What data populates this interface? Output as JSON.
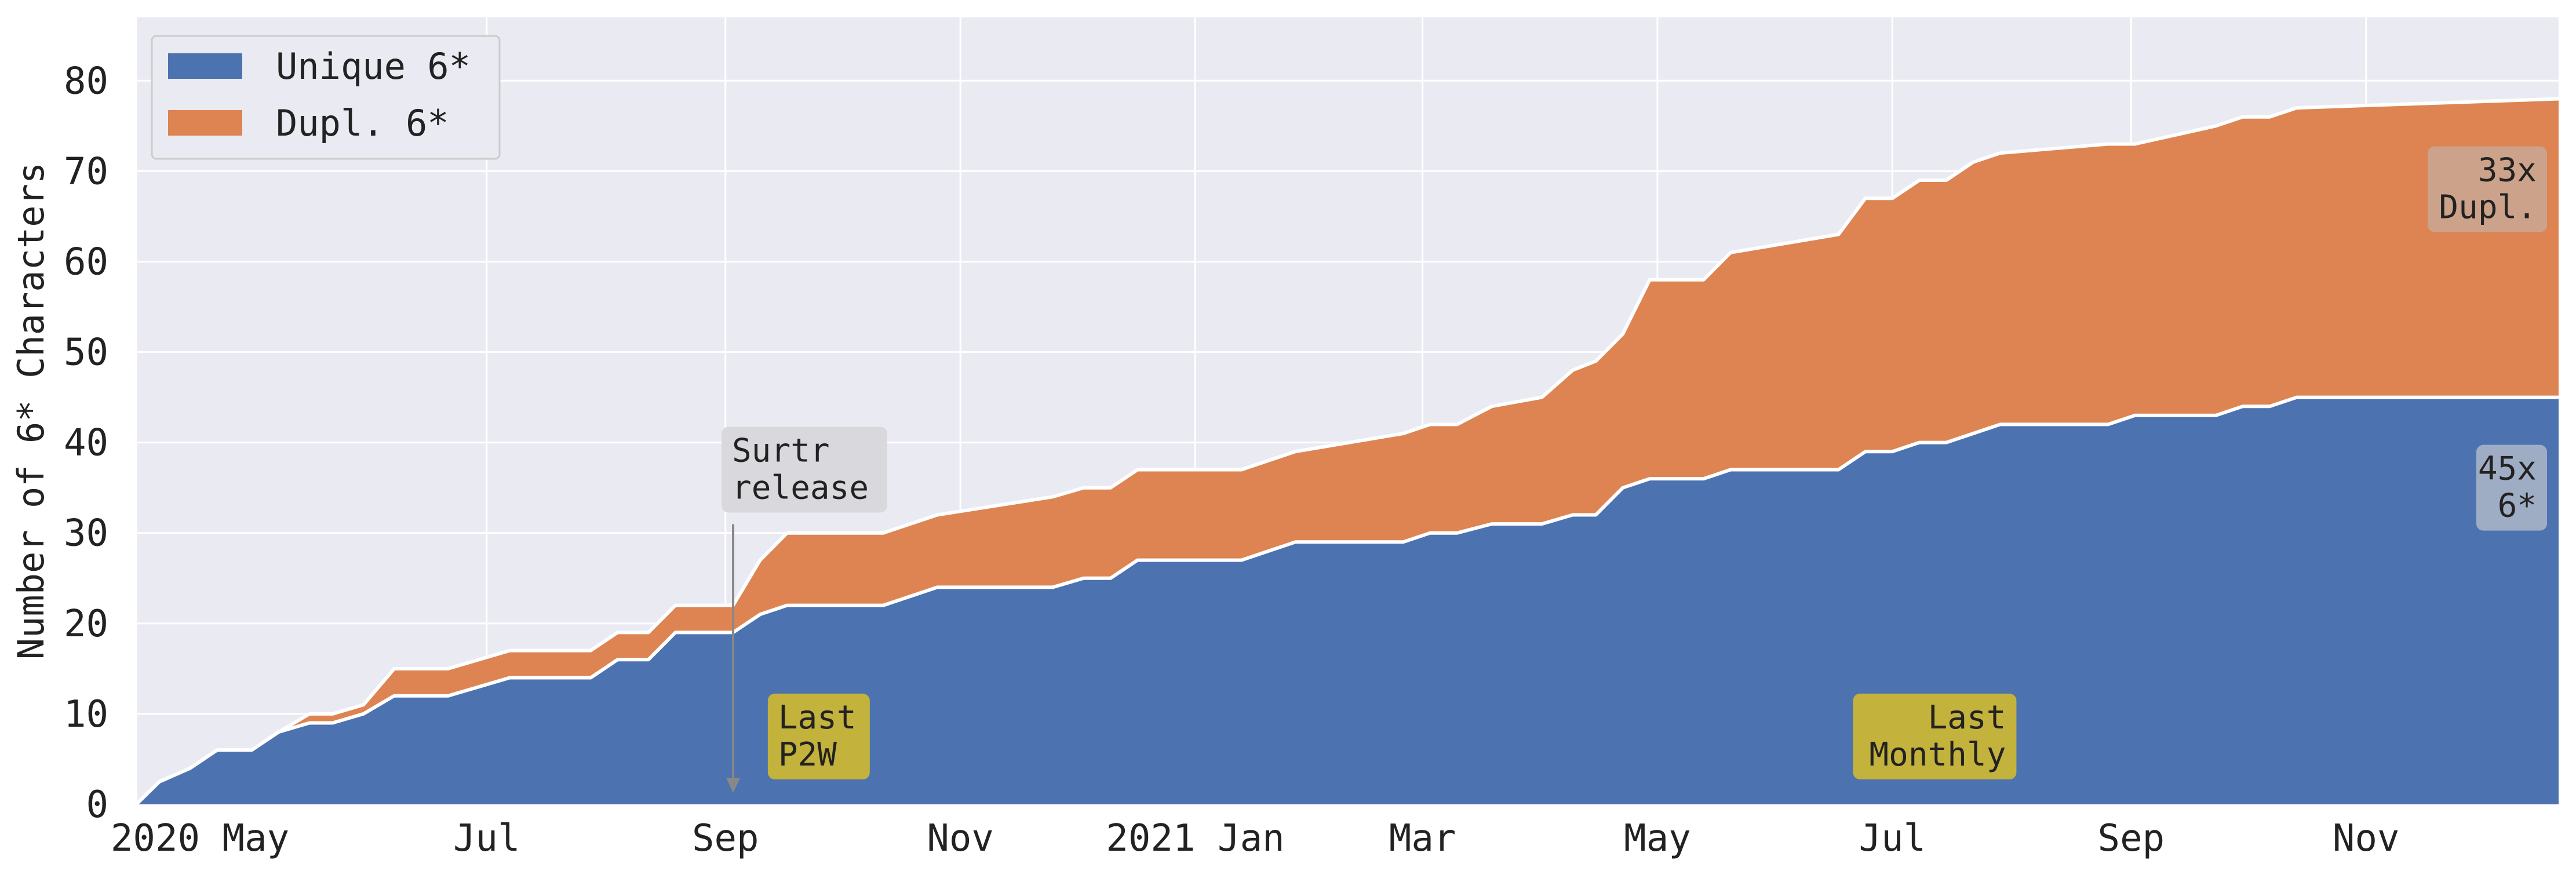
{
  "chart_data": {
    "type": "area",
    "stacked": true,
    "ylabel": "Number of 6* Characters",
    "ylim": [
      0,
      87
    ],
    "yticks": [
      0,
      10,
      20,
      30,
      40,
      50,
      60,
      70,
      80
    ],
    "xlim": [
      "2020-04-01",
      "2021-12-21"
    ],
    "xticks": [
      {
        "date": "2020-04-01",
        "label": "2020 May"
      },
      {
        "date": "2020-07-01",
        "label": "Jul"
      },
      {
        "date": "2020-09-01",
        "label": "Sep"
      },
      {
        "date": "2020-11-01",
        "label": "Nov"
      },
      {
        "date": "2021-01-01",
        "label": "2021 Jan"
      },
      {
        "date": "2021-03-01",
        "label": "Mar"
      },
      {
        "date": "2021-05-01",
        "label": "May"
      },
      {
        "date": "2021-07-01",
        "label": "Jul"
      },
      {
        "date": "2021-09-01",
        "label": "Sep"
      },
      {
        "date": "2021-11-01",
        "label": "Nov"
      }
    ],
    "grid": true,
    "legend_position": "top-left",
    "series": [
      {
        "name": "Unique 6*",
        "color": "#4c72b0",
        "points": [
          [
            "2020-04-01",
            0
          ],
          [
            "2020-04-07",
            2.5
          ],
          [
            "2020-04-15",
            4
          ],
          [
            "2020-04-22",
            6
          ],
          [
            "2020-05-01",
            6
          ],
          [
            "2020-05-08",
            8
          ],
          [
            "2020-05-16",
            9
          ],
          [
            "2020-05-22",
            9
          ],
          [
            "2020-05-30",
            10
          ],
          [
            "2020-06-07",
            12
          ],
          [
            "2020-06-21",
            12
          ],
          [
            "2020-07-07",
            14
          ],
          [
            "2020-07-28",
            14
          ],
          [
            "2020-08-04",
            16
          ],
          [
            "2020-08-12",
            16
          ],
          [
            "2020-08-19",
            19
          ],
          [
            "2020-09-03",
            19
          ],
          [
            "2020-09-10",
            21
          ],
          [
            "2020-09-17",
            22
          ],
          [
            "2020-10-12",
            22
          ],
          [
            "2020-10-26",
            24
          ],
          [
            "2020-11-25",
            24
          ],
          [
            "2020-12-03",
            25
          ],
          [
            "2020-12-10",
            25
          ],
          [
            "2020-12-17",
            27
          ],
          [
            "2021-01-13",
            27
          ],
          [
            "2021-01-27",
            29
          ],
          [
            "2021-02-24",
            29
          ],
          [
            "2021-03-03",
            30
          ],
          [
            "2021-03-10",
            30
          ],
          [
            "2021-03-19",
            31
          ],
          [
            "2021-04-01",
            31
          ],
          [
            "2021-04-09",
            32
          ],
          [
            "2021-04-15",
            32
          ],
          [
            "2021-04-22",
            35
          ],
          [
            "2021-04-29",
            36
          ],
          [
            "2021-05-13",
            36
          ],
          [
            "2021-05-20",
            37
          ],
          [
            "2021-06-17",
            37
          ],
          [
            "2021-06-24",
            39
          ],
          [
            "2021-07-01",
            39
          ],
          [
            "2021-07-08",
            40
          ],
          [
            "2021-07-15",
            40
          ],
          [
            "2021-07-22",
            41
          ],
          [
            "2021-07-29",
            42
          ],
          [
            "2021-08-26",
            42
          ],
          [
            "2021-09-02",
            43
          ],
          [
            "2021-09-23",
            43
          ],
          [
            "2021-09-30",
            44
          ],
          [
            "2021-10-07",
            44
          ],
          [
            "2021-10-14",
            45
          ],
          [
            "2021-12-21",
            45
          ]
        ]
      },
      {
        "name": "Dupl. 6*",
        "color": "#dd8452",
        "points": [
          [
            "2020-04-01",
            0
          ],
          [
            "2020-04-07",
            0
          ],
          [
            "2020-04-15",
            0
          ],
          [
            "2020-04-22",
            0
          ],
          [
            "2020-05-01",
            0
          ],
          [
            "2020-05-08",
            0
          ],
          [
            "2020-05-16",
            1
          ],
          [
            "2020-05-22",
            1
          ],
          [
            "2020-05-30",
            1
          ],
          [
            "2020-06-07",
            3
          ],
          [
            "2020-06-21",
            3
          ],
          [
            "2020-07-07",
            3
          ],
          [
            "2020-07-28",
            3
          ],
          [
            "2020-08-04",
            3
          ],
          [
            "2020-08-12",
            3
          ],
          [
            "2020-08-19",
            3
          ],
          [
            "2020-09-03",
            3
          ],
          [
            "2020-09-10",
            6
          ],
          [
            "2020-09-17",
            8
          ],
          [
            "2020-10-12",
            8
          ],
          [
            "2020-10-26",
            8
          ],
          [
            "2020-11-25",
            10
          ],
          [
            "2020-12-03",
            10
          ],
          [
            "2020-12-10",
            10
          ],
          [
            "2020-12-17",
            10
          ],
          [
            "2021-01-13",
            10
          ],
          [
            "2021-01-27",
            10
          ],
          [
            "2021-02-24",
            12
          ],
          [
            "2021-03-03",
            12
          ],
          [
            "2021-03-10",
            12
          ],
          [
            "2021-03-19",
            13
          ],
          [
            "2021-04-01",
            14
          ],
          [
            "2021-04-09",
            16
          ],
          [
            "2021-04-15",
            17
          ],
          [
            "2021-04-22",
            17
          ],
          [
            "2021-04-29",
            22
          ],
          [
            "2021-05-13",
            22
          ],
          [
            "2021-05-20",
            24
          ],
          [
            "2021-06-17",
            26
          ],
          [
            "2021-06-24",
            28
          ],
          [
            "2021-07-01",
            28
          ],
          [
            "2021-07-08",
            29
          ],
          [
            "2021-07-15",
            29
          ],
          [
            "2021-07-22",
            30
          ],
          [
            "2021-07-29",
            30
          ],
          [
            "2021-08-26",
            31
          ],
          [
            "2021-09-02",
            30
          ],
          [
            "2021-09-23",
            32
          ],
          [
            "2021-09-30",
            32
          ],
          [
            "2021-10-07",
            32
          ],
          [
            "2021-10-14",
            32
          ],
          [
            "2021-12-21",
            33
          ]
        ]
      }
    ],
    "annotations": [
      {
        "text": "Surtr\nrelease",
        "date": "2020-09-03",
        "y": 37,
        "arrow_to": 1
      },
      {
        "text": "Last\nP2W",
        "date": "2020-09-12",
        "y": 7.5,
        "bg": "#c9b536"
      },
      {
        "text": "Last\nMonthly",
        "date": "2021-07-12",
        "y": 7.5,
        "bg": "#c9b536"
      },
      {
        "text": "33x\nDupl.",
        "date": "2021-12-21",
        "y": 68,
        "bg": "#c8aa9a"
      },
      {
        "text": "45x\n6*",
        "date": "2021-12-21",
        "y": 35,
        "bg": "#b4bbc9"
      }
    ]
  }
}
